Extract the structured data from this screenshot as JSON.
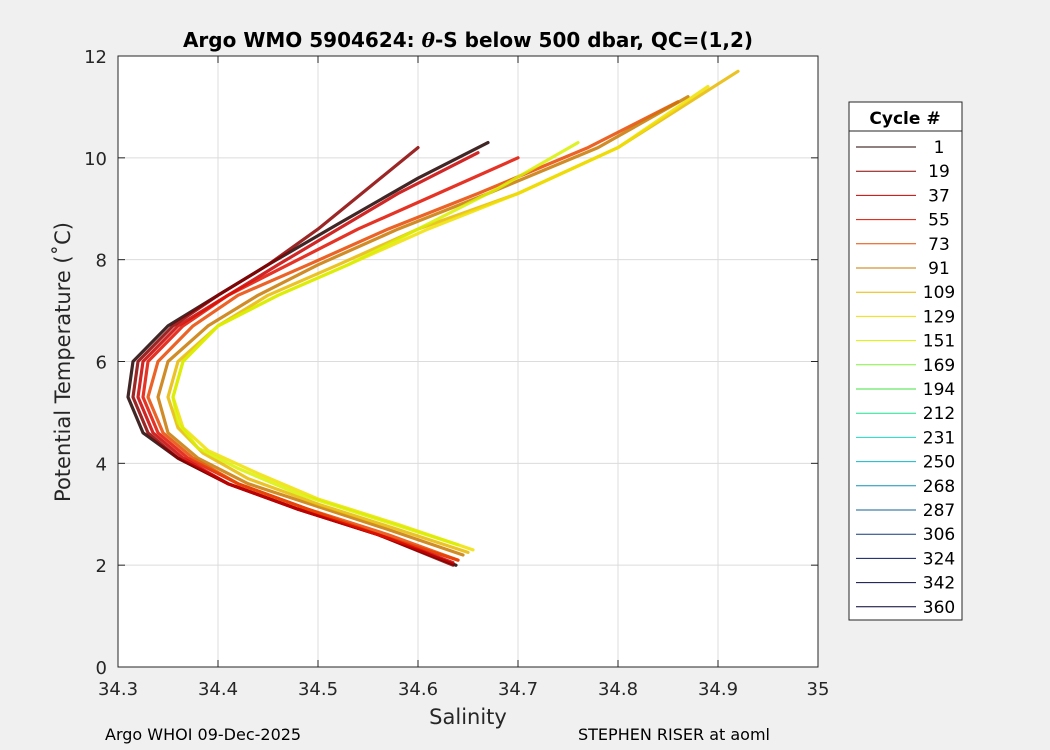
{
  "chart_data": {
    "type": "line",
    "title_prefix": "Argo WMO 5904624: ",
    "title_theta": "θ",
    "title_suffix": "-S below 500 dbar,  QC=(1,2)",
    "xlabel": "Salinity",
    "ylabel": "Potential Temperature (˚C)",
    "xlim": [
      34.3,
      35
    ],
    "ylim": [
      0,
      12
    ],
    "xticks": [
      "34.3",
      "34.4",
      "34.5",
      "34.6",
      "34.7",
      "34.8",
      "34.9",
      "35"
    ],
    "yticks": [
      "0",
      "2",
      "4",
      "6",
      "8",
      "10",
      "12"
    ],
    "grid": true,
    "legend": {
      "title": "Cycle #",
      "placement": "right",
      "entries": [
        {
          "label": "1",
          "color": "#200000"
        },
        {
          "label": "19",
          "color": "#8a0000"
        },
        {
          "label": "37",
          "color": "#c80000"
        },
        {
          "label": "55",
          "color": "#e01000"
        },
        {
          "label": "73",
          "color": "#e84800"
        },
        {
          "label": "91",
          "color": "#c87800"
        },
        {
          "label": "109",
          "color": "#e8b800"
        },
        {
          "label": "129",
          "color": "#f0e000"
        },
        {
          "label": "151",
          "color": "#d8f000"
        },
        {
          "label": "169",
          "color": "#80f040"
        },
        {
          "label": "194",
          "color": "#40e040"
        },
        {
          "label": "212",
          "color": "#20e090"
        },
        {
          "label": "231",
          "color": "#20d8c0"
        },
        {
          "label": "250",
          "color": "#10b8c8"
        },
        {
          "label": "268",
          "color": "#1090b8"
        },
        {
          "label": "287",
          "color": "#106090"
        },
        {
          "label": "306",
          "color": "#103878"
        },
        {
          "label": "324",
          "color": "#0a1860"
        },
        {
          "label": "342",
          "color": "#080c40"
        },
        {
          "label": "360",
          "color": "#000030"
        }
      ]
    },
    "series": [
      {
        "color": "#200000",
        "x": [
          34.638,
          34.56,
          34.48,
          34.41,
          34.36,
          34.325,
          34.31,
          34.315,
          34.35,
          34.4,
          34.45,
          34.52,
          34.6,
          34.67
        ],
        "y": [
          2.0,
          2.6,
          3.1,
          3.6,
          4.1,
          4.6,
          5.3,
          6.0,
          6.7,
          7.3,
          7.9,
          8.7,
          9.6,
          10.3
        ]
      },
      {
        "color": "#8a0000",
        "x": [
          34.635,
          34.56,
          34.48,
          34.41,
          34.36,
          34.33,
          34.315,
          34.32,
          34.355,
          34.4,
          34.45,
          34.5,
          34.55,
          34.6
        ],
        "y": [
          2.0,
          2.6,
          3.1,
          3.6,
          4.1,
          4.6,
          5.3,
          6.0,
          6.7,
          7.3,
          7.9,
          8.6,
          9.4,
          10.2
        ]
      },
      {
        "color": "#c80000",
        "x": [
          34.635,
          34.56,
          34.48,
          34.41,
          34.365,
          34.335,
          34.32,
          34.325,
          34.36,
          34.41,
          34.46,
          34.52,
          34.58,
          34.66
        ],
        "y": [
          2.05,
          2.6,
          3.1,
          3.6,
          4.1,
          4.6,
          5.3,
          6.0,
          6.7,
          7.3,
          7.9,
          8.6,
          9.3,
          10.1
        ]
      },
      {
        "color": "#e01000",
        "x": [
          34.64,
          34.56,
          34.49,
          34.42,
          34.37,
          34.34,
          34.325,
          34.33,
          34.365,
          34.41,
          34.47,
          34.54,
          34.62,
          34.7
        ],
        "y": [
          2.1,
          2.6,
          3.1,
          3.6,
          4.1,
          4.6,
          5.3,
          6.0,
          6.7,
          7.3,
          7.9,
          8.6,
          9.3,
          10.0
        ]
      },
      {
        "color": "#e84800",
        "x": [
          34.64,
          34.57,
          34.49,
          34.42,
          34.375,
          34.345,
          34.33,
          34.34,
          34.375,
          34.42,
          34.49,
          34.57,
          34.66,
          34.77,
          34.86
        ],
        "y": [
          2.1,
          2.6,
          3.1,
          3.6,
          4.1,
          4.6,
          5.3,
          6.0,
          6.7,
          7.3,
          7.9,
          8.6,
          9.3,
          10.2,
          11.1
        ]
      },
      {
        "color": "#c87800",
        "x": [
          34.645,
          34.57,
          34.5,
          34.43,
          34.38,
          34.35,
          34.34,
          34.35,
          34.39,
          34.44,
          34.5,
          34.58,
          34.67,
          34.78,
          34.87
        ],
        "y": [
          2.2,
          2.7,
          3.15,
          3.6,
          4.1,
          4.6,
          5.3,
          6.0,
          6.7,
          7.3,
          7.9,
          8.6,
          9.3,
          10.2,
          11.2
        ]
      },
      {
        "color": "#e8b800",
        "x": [
          34.65,
          34.58,
          34.5,
          34.43,
          34.385,
          34.36,
          34.35,
          34.36,
          34.4,
          34.45,
          34.52,
          34.6,
          34.7,
          34.8,
          34.92
        ],
        "y": [
          2.25,
          2.7,
          3.2,
          3.7,
          4.2,
          4.7,
          5.3,
          6.0,
          6.7,
          7.3,
          7.9,
          8.6,
          9.3,
          10.2,
          11.7
        ]
      },
      {
        "color": "#f0e000",
        "x": [
          34.655,
          34.58,
          34.5,
          34.44,
          34.39,
          34.365,
          34.355,
          34.365,
          34.4,
          34.46,
          34.53,
          34.61,
          34.7,
          34.8,
          34.89
        ],
        "y": [
          2.3,
          2.8,
          3.3,
          3.8,
          4.25,
          4.7,
          5.3,
          6.0,
          6.7,
          7.3,
          7.9,
          8.6,
          9.3,
          10.2,
          11.4
        ]
      },
      {
        "color": "#d8f000",
        "x": [
          34.64,
          34.56,
          34.48,
          34.42,
          34.38,
          34.36,
          34.355,
          34.365,
          34.4,
          34.46,
          34.53,
          34.6,
          34.68,
          34.76
        ],
        "y": [
          2.4,
          2.9,
          3.4,
          3.9,
          4.3,
          4.8,
          5.3,
          6.0,
          6.7,
          7.3,
          7.9,
          8.6,
          9.4,
          10.3
        ]
      }
    ]
  },
  "footer": {
    "left": "Argo WHOI 09-Dec-2025",
    "right": "STEPHEN RISER at aoml"
  }
}
